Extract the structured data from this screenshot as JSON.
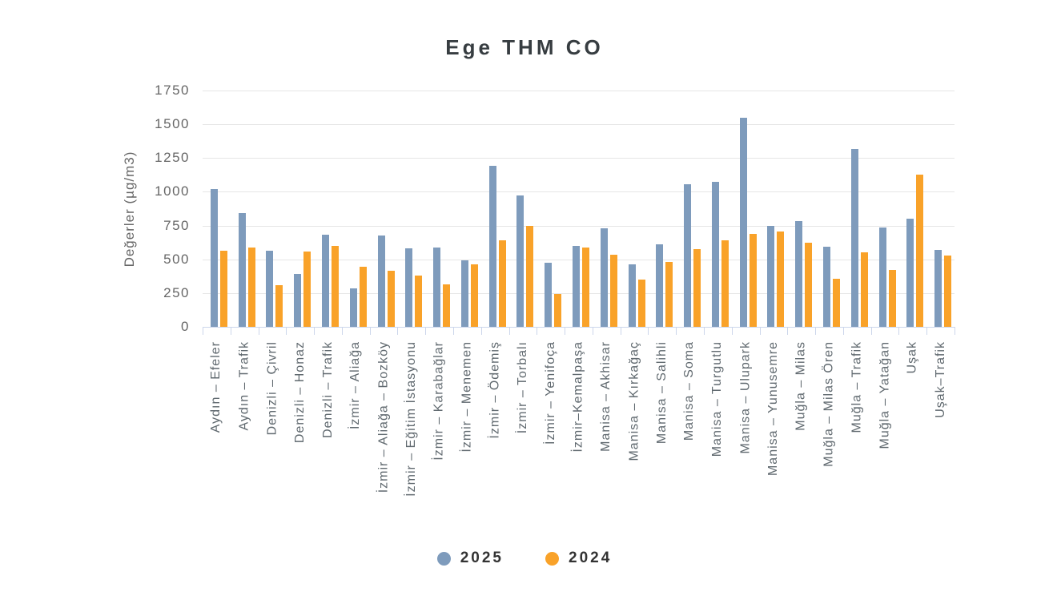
{
  "title": "Ege THM CO",
  "y_axis": {
    "title": "Değerler (µg/m3)",
    "tick_labels": [
      "0",
      "250",
      "500",
      "750",
      "1000",
      "1250",
      "1500",
      "1750"
    ]
  },
  "legend": {
    "items": [
      {
        "label": "2025",
        "color": "#7E9BBC"
      },
      {
        "label": "2024",
        "color": "#F9A229"
      }
    ]
  },
  "colors": {
    "series_2025": "#7E9BBC",
    "series_2024": "#F9A229",
    "gridline": "#E6E6E6",
    "axis_line": "#CCD6EB",
    "tick_text": "#666666",
    "title_text": "#373D41"
  },
  "chart_data": {
    "type": "bar",
    "title": "Ege THM CO",
    "xlabel": "",
    "ylabel": "Değerler (µg/m3)",
    "ylim": [
      0,
      1750
    ],
    "ytick_step": 250,
    "grid": true,
    "legend_position": "bottom",
    "categories": [
      "Aydın – Efeler",
      "Aydın – Trafik",
      "Denizli – Çivril",
      "Denizli – Honaz",
      "Denizli – Trafik",
      "İzmir – Aliağa",
      "İzmir – Aliağa – Bozköy",
      "İzmir – Eğitim İstasyonu",
      "İzmir – Karabağlar",
      "İzmir – Menemen",
      "İzmir – Ödemiş",
      "İzmir – Torbalı",
      "İzmir – Yenifoça",
      "İzmir–Kemalpaşa",
      "Manisa – Akhisar",
      "Manisa – Kırkağaç",
      "Manisa – Salihli",
      "Manisa – Soma",
      "Manisa – Turgutlu",
      "Manisa – Ulupark",
      "Manisa – Yunusemre",
      "Muğla – Milas",
      "Muğla – Milas Ören",
      "Muğla – Trafik",
      "Muğla – Yatağan",
      "Uşak",
      "Uşak–Trafik"
    ],
    "series": [
      {
        "name": "2025",
        "color": "#7E9BBC",
        "values": [
          1020,
          840,
          565,
          390,
          685,
          285,
          675,
          580,
          590,
          495,
          1190,
          975,
          475,
          600,
          730,
          460,
          610,
          1055,
          1075,
          1550,
          745,
          785,
          595,
          1320,
          735,
          800,
          570
        ]
      },
      {
        "name": "2024",
        "color": "#F9A229",
        "values": [
          565,
          590,
          310,
          555,
          600,
          445,
          415,
          380,
          315,
          465,
          640,
          745,
          245,
          585,
          535,
          350,
          480,
          575,
          640,
          690,
          705,
          625,
          355,
          550,
          420,
          1125,
          530
        ]
      }
    ]
  }
}
